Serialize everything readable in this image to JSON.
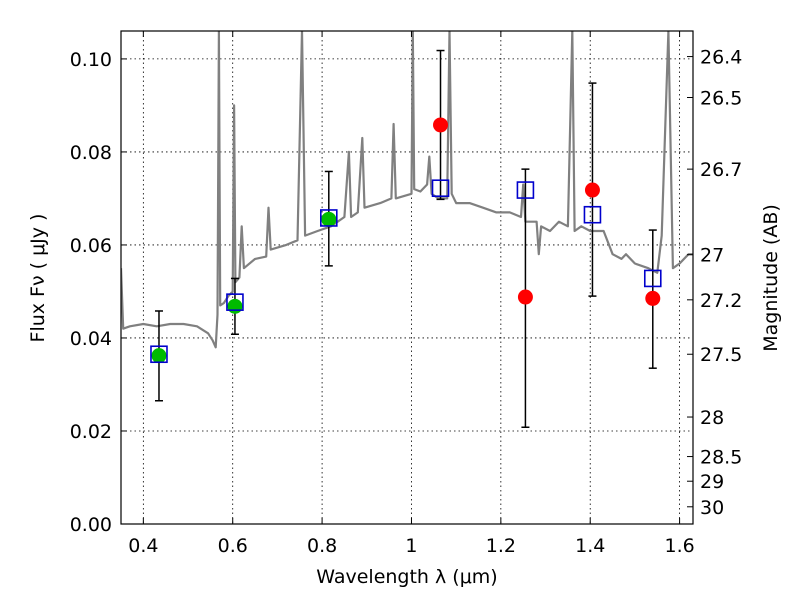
{
  "chart_data": {
    "type": "scatter",
    "xlabel": "Wavelength  λ (μm)",
    "ylabel": "Flux  Fν  ( μJy )",
    "ylabel_right": "Magnitude (AB)",
    "xlim": [
      0.35,
      1.63
    ],
    "ylim": [
      0.0,
      0.106
    ],
    "grid": true,
    "x_ticks": [
      0.4,
      0.6,
      0.8,
      1.0,
      1.2,
      1.4,
      1.6
    ],
    "x_tick_labels": [
      "0.4",
      "0.6",
      "0.8",
      "1",
      "1.2",
      "1.4",
      "1.6"
    ],
    "y_ticks": [
      0.0,
      0.02,
      0.04,
      0.06,
      0.08,
      0.1
    ],
    "y_tick_labels": [
      "0.00",
      "0.02",
      "0.04",
      "0.06",
      "0.08",
      "0.10"
    ],
    "right_ticks": [
      {
        "label": "26.4",
        "flux": 0.1005
      },
      {
        "label": "26.5",
        "flux": 0.0917
      },
      {
        "label": "26.7",
        "flux": 0.0763
      },
      {
        "label": "27",
        "flux": 0.0579
      },
      {
        "label": "27.2",
        "flux": 0.0482
      },
      {
        "label": "27.5",
        "flux": 0.0365
      },
      {
        "label": "28",
        "flux": 0.023
      },
      {
        "label": "28.5",
        "flux": 0.0145
      },
      {
        "label": "29",
        "flux": 0.0092
      },
      {
        "label": "30",
        "flux": 0.0037
      }
    ],
    "series": [
      {
        "kind": "line",
        "color": "#808080",
        "points": [
          [
            0.35,
            0.055
          ],
          [
            0.355,
            0.042
          ],
          [
            0.37,
            0.0425
          ],
          [
            0.4,
            0.043
          ],
          [
            0.43,
            0.0425
          ],
          [
            0.46,
            0.043
          ],
          [
            0.49,
            0.043
          ],
          [
            0.52,
            0.0425
          ],
          [
            0.545,
            0.041
          ],
          [
            0.555,
            0.0395
          ],
          [
            0.562,
            0.038
          ],
          [
            0.566,
            0.045
          ],
          [
            0.569,
            0.106
          ],
          [
            0.572,
            0.047
          ],
          [
            0.58,
            0.0475
          ],
          [
            0.59,
            0.049
          ],
          [
            0.6,
            0.05
          ],
          [
            0.603,
            0.09
          ],
          [
            0.606,
            0.052
          ],
          [
            0.615,
            0.053
          ],
          [
            0.62,
            0.064
          ],
          [
            0.625,
            0.055
          ],
          [
            0.65,
            0.057
          ],
          [
            0.675,
            0.0575
          ],
          [
            0.68,
            0.068
          ],
          [
            0.685,
            0.059
          ],
          [
            0.72,
            0.06
          ],
          [
            0.745,
            0.061
          ],
          [
            0.755,
            0.106
          ],
          [
            0.762,
            0.062
          ],
          [
            0.79,
            0.063
          ],
          [
            0.82,
            0.064
          ],
          [
            0.85,
            0.066
          ],
          [
            0.86,
            0.08
          ],
          [
            0.865,
            0.066
          ],
          [
            0.88,
            0.067
          ],
          [
            0.89,
            0.083
          ],
          [
            0.895,
            0.068
          ],
          [
            0.93,
            0.069
          ],
          [
            0.955,
            0.07
          ],
          [
            0.96,
            0.086
          ],
          [
            0.965,
            0.07
          ],
          [
            1.0,
            0.071
          ],
          [
            1.003,
            0.106
          ],
          [
            1.006,
            0.072
          ],
          [
            1.02,
            0.0715
          ],
          [
            1.035,
            0.073
          ],
          [
            1.04,
            0.079
          ],
          [
            1.045,
            0.071
          ],
          [
            1.06,
            0.07
          ],
          [
            1.08,
            0.07
          ],
          [
            1.085,
            0.106
          ],
          [
            1.09,
            0.071
          ],
          [
            1.1,
            0.069
          ],
          [
            1.13,
            0.069
          ],
          [
            1.16,
            0.068
          ],
          [
            1.19,
            0.067
          ],
          [
            1.22,
            0.067
          ],
          [
            1.245,
            0.066
          ],
          [
            1.25,
            0.073
          ],
          [
            1.255,
            0.065
          ],
          [
            1.28,
            0.065
          ],
          [
            1.285,
            0.058
          ],
          [
            1.29,
            0.064
          ],
          [
            1.31,
            0.063
          ],
          [
            1.33,
            0.065
          ],
          [
            1.35,
            0.064
          ],
          [
            1.36,
            0.106
          ],
          [
            1.365,
            0.063
          ],
          [
            1.38,
            0.064
          ],
          [
            1.4,
            0.063
          ],
          [
            1.43,
            0.063
          ],
          [
            1.45,
            0.058
          ],
          [
            1.47,
            0.057
          ],
          [
            1.48,
            0.058
          ],
          [
            1.5,
            0.056
          ],
          [
            1.53,
            0.055
          ],
          [
            1.55,
            0.054
          ],
          [
            1.56,
            0.062
          ],
          [
            1.575,
            0.106
          ],
          [
            1.585,
            0.055
          ],
          [
            1.6,
            0.056
          ],
          [
            1.62,
            0.058
          ],
          [
            1.63,
            0.058
          ]
        ]
      },
      {
        "kind": "markers",
        "marker": "circle",
        "color": "#00bb00",
        "points": [
          [
            0.435,
            0.0362
          ],
          [
            0.605,
            0.0468
          ],
          [
            0.815,
            0.0655
          ]
        ]
      },
      {
        "kind": "markers",
        "marker": "circle",
        "color": "#ff0000",
        "points": [
          [
            1.065,
            0.0858
          ],
          [
            1.255,
            0.0488
          ],
          [
            1.405,
            0.0718
          ],
          [
            1.54,
            0.0485
          ]
        ]
      },
      {
        "kind": "markers",
        "marker": "open-square",
        "color": "#0000cc",
        "points": [
          [
            0.435,
            0.0365
          ],
          [
            0.605,
            0.0477
          ],
          [
            0.815,
            0.0658
          ],
          [
            1.065,
            0.0722
          ],
          [
            1.255,
            0.0718
          ],
          [
            1.405,
            0.0665
          ],
          [
            1.54,
            0.0528
          ]
        ]
      },
      {
        "kind": "errorbars",
        "color": "#000000",
        "points": [
          {
            "x": 0.435,
            "lo": 0.0265,
            "hi": 0.0458
          },
          {
            "x": 0.605,
            "lo": 0.0408,
            "hi": 0.0528
          },
          {
            "x": 0.815,
            "lo": 0.0555,
            "hi": 0.0758
          },
          {
            "x": 1.065,
            "lo": 0.0698,
            "hi": 0.1018
          },
          {
            "x": 1.255,
            "lo": 0.0208,
            "hi": 0.0763
          },
          {
            "x": 1.405,
            "lo": 0.049,
            "hi": 0.0948
          },
          {
            "x": 1.54,
            "lo": 0.0335,
            "hi": 0.0632
          }
        ]
      }
    ]
  }
}
